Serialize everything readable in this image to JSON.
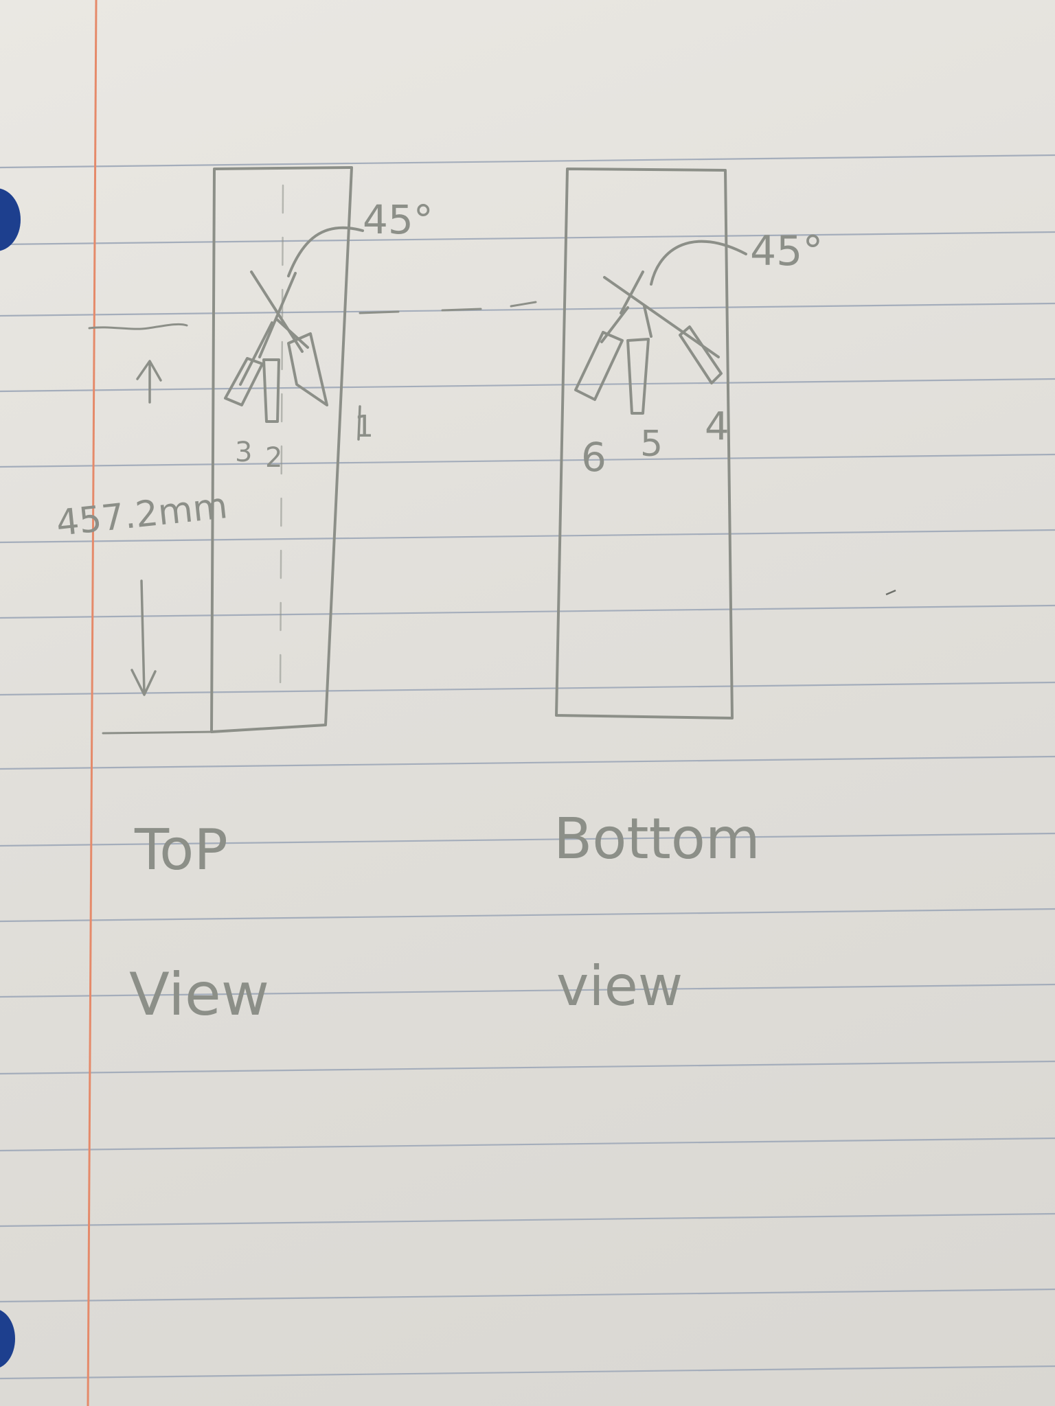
{
  "sketch": {
    "top_view": {
      "angle_label": "45°",
      "nozzle_numbers": [
        "3",
        "2",
        "1"
      ],
      "dimension_label": "457.2mm",
      "caption_line1": "ToP",
      "caption_line2": "View"
    },
    "bottom_view": {
      "angle_label": "45°",
      "nozzle_numbers": [
        "6",
        "5",
        "4"
      ],
      "caption_line1": "Bottom",
      "caption_line2": "view"
    }
  },
  "colors": {
    "paper": "#e6e4df",
    "rule_line": "#9fa8b8",
    "margin_line": "#e58a6a",
    "pencil": "#8c8f88",
    "binder_hole": "#1f3f8c"
  }
}
